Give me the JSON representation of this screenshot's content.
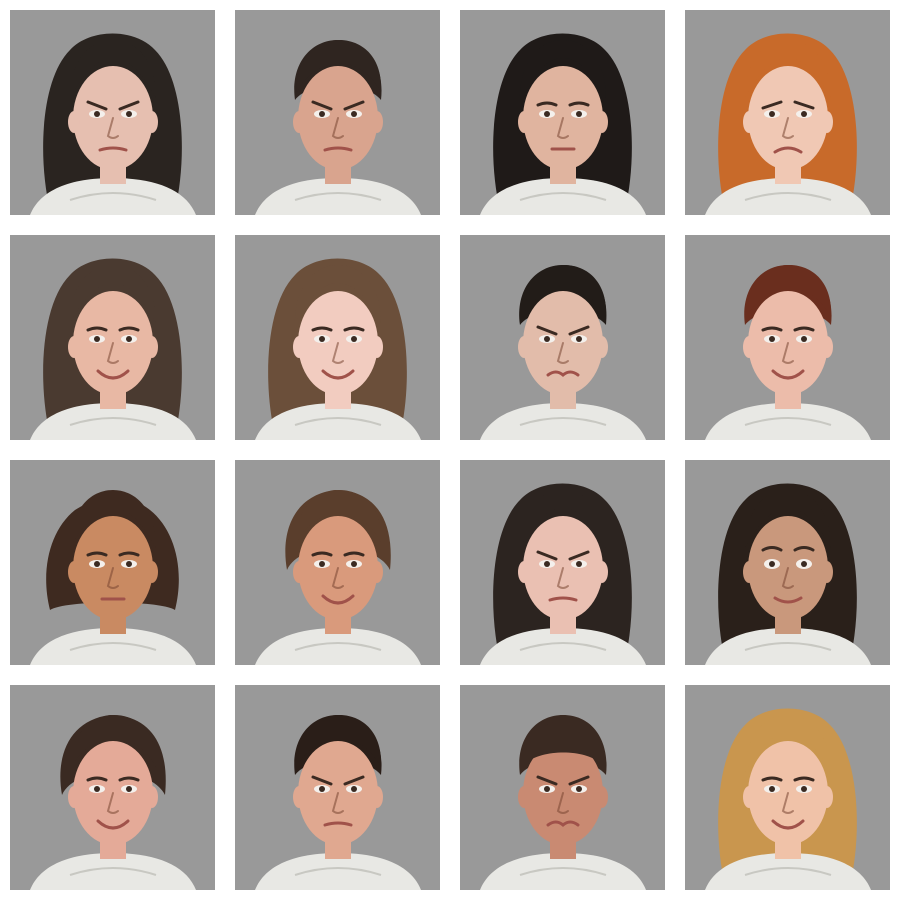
{
  "grid": {
    "background": "#999999",
    "tiles": [
      {
        "icon": "portrait-icon",
        "subject": "woman",
        "hair": "long-dark",
        "hair_color": "#2a2420",
        "skin_color": "#e6bfb0",
        "expression": "angry"
      },
      {
        "icon": "portrait-icon",
        "subject": "man",
        "hair": "short-dark",
        "hair_color": "#2f2520",
        "skin_color": "#d9a48e",
        "expression": "angry"
      },
      {
        "icon": "portrait-icon",
        "subject": "woman",
        "hair": "long-dark",
        "hair_color": "#1f1a18",
        "skin_color": "#e0b49f",
        "expression": "neutral"
      },
      {
        "icon": "portrait-icon",
        "subject": "woman",
        "hair": "long-red",
        "hair_color": "#c86a2a",
        "skin_color": "#f0c8b4",
        "expression": "sad"
      },
      {
        "icon": "portrait-icon",
        "subject": "woman",
        "hair": "long-brown",
        "hair_color": "#4a3a30",
        "skin_color": "#e8b8a4",
        "expression": "happy"
      },
      {
        "icon": "portrait-icon",
        "subject": "woman",
        "hair": "long-light-brown",
        "hair_color": "#6b4f3a",
        "skin_color": "#f2ccc0",
        "expression": "happy"
      },
      {
        "icon": "portrait-icon",
        "subject": "man",
        "hair": "short-dark",
        "hair_color": "#221c18",
        "skin_color": "#e2bcaa",
        "expression": "disgust"
      },
      {
        "icon": "portrait-icon",
        "subject": "man",
        "hair": "short-auburn",
        "hair_color": "#6a2e1e",
        "skin_color": "#ecbcaa",
        "expression": "happy"
      },
      {
        "icon": "portrait-icon",
        "subject": "woman",
        "hair": "updo-brown",
        "hair_color": "#3e2a20",
        "skin_color": "#c98a62",
        "expression": "neutral"
      },
      {
        "icon": "portrait-icon",
        "subject": "man",
        "hair": "medium-brown",
        "hair_color": "#5a3e2c",
        "skin_color": "#d99a7c",
        "expression": "happy"
      },
      {
        "icon": "portrait-icon",
        "subject": "man",
        "hair": "long-dark",
        "hair_color": "#2c2420",
        "skin_color": "#eac0b2",
        "expression": "angry"
      },
      {
        "icon": "portrait-icon",
        "subject": "woman",
        "hair": "long-dark",
        "hair_color": "#2a201a",
        "skin_color": "#c9987c",
        "expression": "fear"
      },
      {
        "icon": "portrait-icon",
        "subject": "man",
        "hair": "medium-dark",
        "hair_color": "#3a2a22",
        "skin_color": "#e4aa98",
        "expression": "happy"
      },
      {
        "icon": "portrait-icon",
        "subject": "man",
        "hair": "short-dark",
        "hair_color": "#2a1e18",
        "skin_color": "#e0a890",
        "expression": "angry"
      },
      {
        "icon": "portrait-icon",
        "subject": "man",
        "hair": "short-buzz",
        "hair_color": "#3a2a22",
        "skin_color": "#c98a72",
        "expression": "disgust"
      },
      {
        "icon": "portrait-icon",
        "subject": "woman",
        "hair": "long-blonde",
        "hair_color": "#c9964e",
        "skin_color": "#f0c2a8",
        "expression": "happy"
      }
    ]
  }
}
